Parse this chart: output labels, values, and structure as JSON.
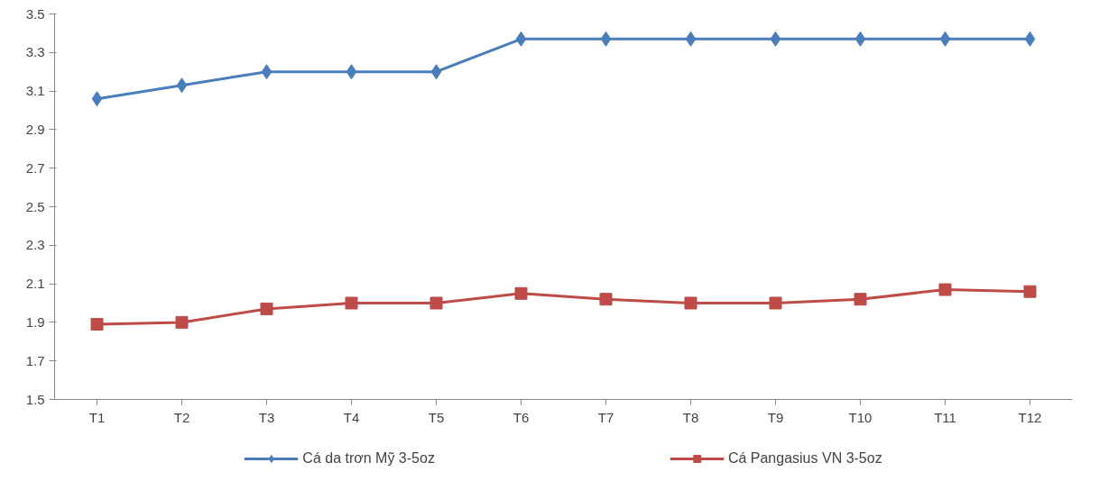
{
  "chart_data": {
    "type": "line",
    "categories": [
      "T1",
      "T2",
      "T3",
      "T4",
      "T5",
      "T6",
      "T7",
      "T8",
      "T9",
      "T10",
      "T11",
      "T12"
    ],
    "series": [
      {
        "name": "Cá da trơn Mỹ 3-5oz",
        "color": "#4a7ebb",
        "marker": "diamond",
        "values": [
          3.06,
          3.13,
          3.2,
          3.2,
          3.2,
          3.37,
          3.37,
          3.37,
          3.37,
          3.37,
          3.37,
          3.37
        ]
      },
      {
        "name": "Cá Pangasius VN 3-5oz",
        "color": "#be4b48",
        "marker": "square",
        "values": [
          1.89,
          1.9,
          1.97,
          2.0,
          2.0,
          2.05,
          2.02,
          2.0,
          2.0,
          2.02,
          2.07,
          2.06
        ]
      }
    ],
    "ylim": [
      1.5,
      3.5
    ],
    "yticks": [
      1.5,
      1.7,
      1.9,
      2.1,
      2.3,
      2.5,
      2.7,
      2.9,
      3.1,
      3.3,
      3.5
    ],
    "grid": false,
    "legend": "bottom",
    "line_style": "solid"
  }
}
